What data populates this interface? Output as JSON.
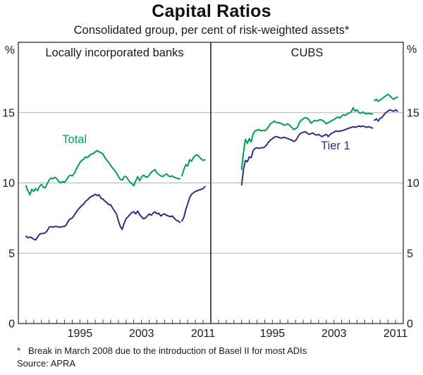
{
  "title": "Capital Ratios",
  "subtitle": "Consolidated group, per cent of risk-weighted assets*",
  "unit_label": "%",
  "footnote_marker": "*",
  "footnote": "Break in March 2008 due to the introduction of Basel II for most ADIs",
  "source": "Source: APRA",
  "colors": {
    "total": "#00a04e",
    "tier1": "#2d2f86",
    "grid": "#b0b0b0",
    "axis": "#3c3c3c",
    "text": "#1a1a1a"
  },
  "chart_data": {
    "type": "line",
    "unit": "%",
    "x_range": [
      1987,
      2012
    ],
    "ylim": [
      0,
      20
    ],
    "y_gridlines": [
      5,
      10,
      15
    ],
    "y_axis_labels": [
      15,
      10,
      5,
      0
    ],
    "x_labels": [
      1995,
      2003,
      2011
    ],
    "tick_years_step": 1,
    "legend_position": "inline-labels",
    "grid": true,
    "panels": [
      {
        "title": "Locally incorporated banks",
        "series": [
          {
            "name": "Total",
            "color_key": "total",
            "label": {
              "text": "Total",
              "x_year": 1994.3,
              "y_value": 13.1
            },
            "segments": [
              {
                "start_year": 1988.0,
                "step_years": 0.25,
                "values": [
                  9.8,
                  9.45,
                  9.15,
                  9.55,
                  9.4,
                  9.6,
                  9.45,
                  9.75,
                  9.9,
                  9.7,
                  9.65,
                  9.95,
                  10.2,
                  10.35,
                  10.3,
                  10.4,
                  10.3,
                  10.1,
                  10.0,
                  10.1,
                  10.05,
                  10.2,
                  10.45,
                  10.55,
                  10.5,
                  10.65,
                  10.95,
                  11.2,
                  11.45,
                  11.6,
                  11.7,
                  11.85,
                  11.8,
                  11.95,
                  12.05,
                  12.1,
                  12.2,
                  12.3,
                  12.2,
                  12.15,
                  12.05,
                  11.8,
                  11.6,
                  11.45,
                  11.25,
                  11.05,
                  10.9,
                  10.7,
                  10.45,
                  10.25,
                  10.2,
                  10.45,
                  10.45,
                  10.25,
                  10.05,
                  9.95,
                  9.8,
                  10.15,
                  10.45,
                  10.15,
                  10.4,
                  10.55,
                  10.45,
                  10.4,
                  10.55,
                  10.75,
                  10.85,
                  10.95,
                  10.7,
                  10.6,
                  10.5,
                  10.45,
                  10.55,
                  10.65,
                  10.5,
                  10.45,
                  10.5,
                  10.4,
                  10.35,
                  10.3,
                  10.3
                ]
              },
              {
                "start_year": 2008.25,
                "step_years": 0.25,
                "values": [
                  10.5,
                  10.95,
                  11.3,
                  11.2,
                  11.65,
                  11.55,
                  11.8,
                  11.95,
                  12.0,
                  11.85,
                  11.7,
                  11.6,
                  11.65
                ]
              }
            ]
          },
          {
            "name": "Tier 1",
            "color_key": "tier1",
            "segments": [
              {
                "start_year": 1988.0,
                "step_years": 0.25,
                "values": [
                  6.2,
                  6.1,
                  6.15,
                  6.1,
                  6.0,
                  5.95,
                  6.15,
                  6.35,
                  6.4,
                  6.4,
                  6.45,
                  6.6,
                  6.85,
                  6.9,
                  6.85,
                  6.9,
                  6.9,
                  6.85,
                  6.85,
                  6.9,
                  6.9,
                  7.05,
                  7.3,
                  7.45,
                  7.5,
                  7.7,
                  7.9,
                  8.1,
                  8.25,
                  8.4,
                  8.5,
                  8.7,
                  8.8,
                  8.95,
                  9.05,
                  9.1,
                  9.2,
                  9.1,
                  9.15,
                  8.9,
                  8.85,
                  8.7,
                  8.6,
                  8.45,
                  8.45,
                  8.2,
                  8.0,
                  7.8,
                  7.3,
                  6.9,
                  6.7,
                  7.15,
                  7.45,
                  7.6,
                  7.75,
                  7.9,
                  7.95,
                  7.8,
                  8.0,
                  7.75,
                  7.6,
                  7.45,
                  7.5,
                  7.65,
                  7.8,
                  7.7,
                  7.85,
                  7.95,
                  7.8,
                  7.85,
                  7.65,
                  7.75,
                  7.8,
                  7.7,
                  7.65,
                  7.6,
                  7.65,
                  7.5,
                  7.35,
                  7.3,
                  7.2
                ]
              },
              {
                "start_year": 2008.25,
                "step_years": 0.25,
                "values": [
                  7.3,
                  7.55,
                  8.1,
                  8.5,
                  8.95,
                  9.2,
                  9.3,
                  9.4,
                  9.45,
                  9.5,
                  9.55,
                  9.6,
                  9.75
                ]
              }
            ]
          }
        ]
      },
      {
        "title": "CUBS",
        "series": [
          {
            "name": "Total",
            "color_key": "total",
            "segments": [
              {
                "start_year": 1991.0,
                "step_years": 0.25,
                "values": [
                  10.95,
                  12.2,
                  13.1,
                  12.8,
                  13.15,
                  12.9,
                  13.5,
                  13.7,
                  13.75,
                  13.8,
                  13.7,
                  13.75,
                  13.7,
                  13.8,
                  14.0,
                  14.2,
                  14.3,
                  14.4,
                  14.3,
                  14.3,
                  14.25,
                  14.2,
                  14.1,
                  14.15,
                  14.2,
                  14.1,
                  13.95,
                  13.8,
                  13.85,
                  13.95,
                  14.3,
                  14.45,
                  14.55,
                  14.65,
                  14.6,
                  14.5,
                  14.25,
                  14.35,
                  14.45,
                  14.4,
                  14.45,
                  14.5,
                  14.45,
                  14.35,
                  14.2,
                  14.3,
                  14.35,
                  14.45,
                  14.5,
                  14.6,
                  14.7,
                  14.6,
                  14.75,
                  14.85,
                  14.8,
                  14.9,
                  15.0,
                  15.05,
                  15.35,
                  15.1,
                  15.2,
                  15.0,
                  14.95,
                  15.05,
                  14.95,
                  14.9,
                  14.95,
                  14.9,
                  14.9
                ]
              },
              {
                "start_year": 2008.25,
                "step_years": 0.25,
                "values": [
                  15.85,
                  15.95,
                  15.8,
                  15.9,
                  16.0,
                  16.1,
                  16.2,
                  16.3,
                  16.2,
                  16.05,
                  15.95,
                  16.05,
                  16.1
                ]
              }
            ]
          },
          {
            "name": "Tier 1",
            "color_key": "tier1",
            "label": {
              "text": "Tier 1",
              "x_year": 2003.2,
              "y_value": 12.65
            },
            "segments": [
              {
                "start_year": 1991.0,
                "step_years": 0.25,
                "values": [
                  9.85,
                  10.95,
                  11.6,
                  11.5,
                  11.85,
                  11.8,
                  12.3,
                  12.45,
                  12.5,
                  12.45,
                  12.5,
                  12.5,
                  12.55,
                  12.7,
                  12.9,
                  13.05,
                  13.15,
                  13.25,
                  13.3,
                  13.25,
                  13.2,
                  13.2,
                  13.25,
                  13.2,
                  13.15,
                  13.1,
                  13.05,
                  12.95,
                  13.0,
                  13.2,
                  13.45,
                  13.55,
                  13.6,
                  13.65,
                  13.55,
                  13.45,
                  13.5,
                  13.55,
                  13.45,
                  13.4,
                  13.45,
                  13.35,
                  13.3,
                  13.4,
                  13.45,
                  13.3,
                  13.45,
                  13.55,
                  13.6,
                  13.7,
                  13.65,
                  13.7,
                  13.7,
                  13.75,
                  13.8,
                  13.85,
                  13.9,
                  13.95,
                  14.0,
                  13.95,
                  14.0,
                  14.05,
                  14.0,
                  14.05,
                  14.0,
                  13.95,
                  14.0,
                  13.95,
                  13.9
                ]
              },
              {
                "start_year": 2008.25,
                "step_years": 0.25,
                "values": [
                  14.45,
                  14.55,
                  14.4,
                  14.6,
                  14.65,
                  14.85,
                  15.0,
                  15.1,
                  15.2,
                  15.15,
                  15.1,
                  15.2,
                  15.1
                ]
              }
            ]
          }
        ]
      }
    ]
  }
}
